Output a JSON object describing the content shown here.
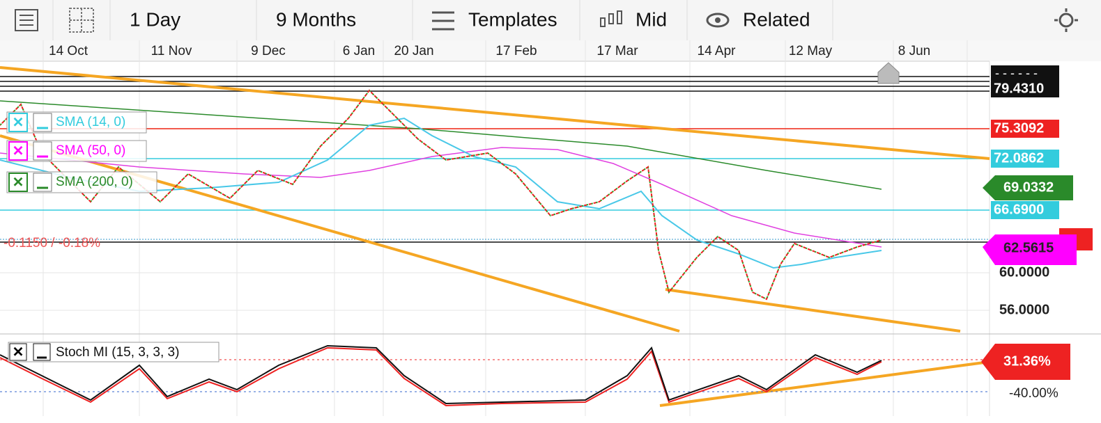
{
  "toolbar": {
    "interval": "1 Day",
    "range": "9 Months",
    "templates": "Templates",
    "price_type": "Mid",
    "related": "Related"
  },
  "date_axis": [
    "14 Oct",
    "11 Nov",
    "9 Dec",
    "6 Jan",
    "20 Jan",
    "17 Feb",
    "17 Mar",
    "14 Apr",
    "12 May",
    "8 Jun"
  ],
  "price_labels": {
    "last_high": "79.4310",
    "red_level": "75.3092",
    "cyan_upper": "72.0862",
    "sma_200": "69.0332",
    "cyan_lower": "66.6900",
    "current": "62.5615",
    "grid_60": "60.0000",
    "grid_56": "56.0000"
  },
  "indicators": [
    "SMA (14, 0)",
    "SMA (50, 0)",
    "SMA (200, 0)"
  ],
  "change": "-0.1150 / -0.18%",
  "stoch": {
    "label": "Stoch MI (15, 3, 3, 3)",
    "value": "31.36%",
    "level": "-40.00%"
  }
}
